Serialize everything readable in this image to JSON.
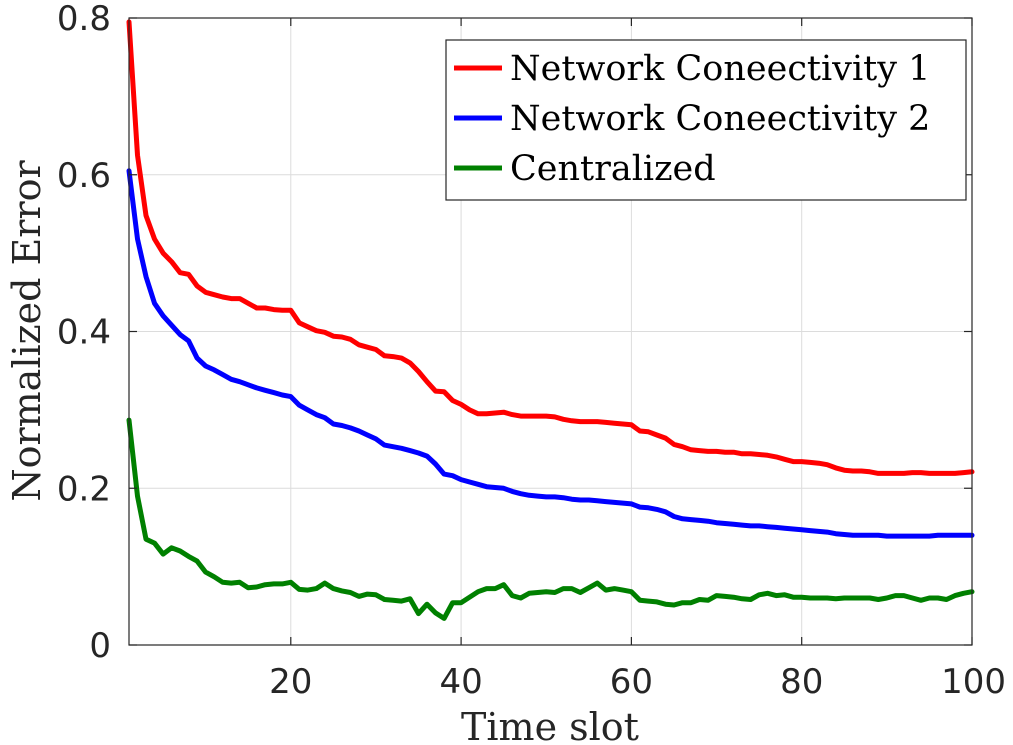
{
  "chart_data": {
    "type": "line",
    "title": "",
    "xlabel": "Time slot",
    "ylabel": "Normalized Error",
    "xlim": [
      1,
      100
    ],
    "ylim": [
      0,
      0.8
    ],
    "xticks": [
      20,
      40,
      60,
      80,
      100
    ],
    "xtick_labels": [
      "20",
      "40",
      "60",
      "80",
      "100"
    ],
    "yticks": [
      0,
      0.2,
      0.4,
      0.6,
      0.8
    ],
    "ytick_labels": [
      "0",
      "0.2",
      "0.4",
      "0.6",
      "0.8"
    ],
    "grid": true,
    "legend_position": "top-right",
    "x": [
      1,
      2,
      3,
      4,
      5,
      6,
      7,
      8,
      9,
      10,
      11,
      12,
      13,
      14,
      15,
      16,
      17,
      18,
      19,
      20,
      21,
      22,
      23,
      24,
      25,
      26,
      27,
      28,
      29,
      30,
      31,
      32,
      33,
      34,
      35,
      36,
      37,
      38,
      39,
      40,
      41,
      42,
      43,
      44,
      45,
      46,
      47,
      48,
      49,
      50,
      51,
      52,
      53,
      54,
      55,
      56,
      57,
      58,
      59,
      60,
      61,
      62,
      63,
      64,
      65,
      66,
      67,
      68,
      69,
      70,
      71,
      72,
      73,
      74,
      75,
      76,
      77,
      78,
      79,
      80,
      81,
      82,
      83,
      84,
      85,
      86,
      87,
      88,
      89,
      90,
      91,
      92,
      93,
      94,
      95,
      96,
      97,
      98,
      99,
      100
    ],
    "series": [
      {
        "name": "Network Coneectivity 1",
        "color": "#ff0000",
        "values": [
          0.795,
          0.625,
          0.548,
          0.518,
          0.5,
          0.489,
          0.475,
          0.473,
          0.458,
          0.45,
          0.447,
          0.444,
          0.442,
          0.442,
          0.436,
          0.43,
          0.43,
          0.428,
          0.427,
          0.427,
          0.411,
          0.406,
          0.401,
          0.399,
          0.394,
          0.393,
          0.39,
          0.383,
          0.38,
          0.377,
          0.369,
          0.368,
          0.366,
          0.36,
          0.349,
          0.336,
          0.324,
          0.323,
          0.312,
          0.307,
          0.3,
          0.295,
          0.295,
          0.296,
          0.297,
          0.294,
          0.292,
          0.292,
          0.292,
          0.292,
          0.291,
          0.288,
          0.286,
          0.285,
          0.285,
          0.285,
          0.284,
          0.283,
          0.282,
          0.281,
          0.273,
          0.272,
          0.268,
          0.264,
          0.256,
          0.253,
          0.249,
          0.248,
          0.247,
          0.247,
          0.246,
          0.246,
          0.244,
          0.244,
          0.243,
          0.242,
          0.24,
          0.237,
          0.234,
          0.234,
          0.233,
          0.232,
          0.23,
          0.226,
          0.223,
          0.222,
          0.222,
          0.221,
          0.219,
          0.219,
          0.219,
          0.219,
          0.22,
          0.22,
          0.219,
          0.219,
          0.219,
          0.219,
          0.22,
          0.221
        ]
      },
      {
        "name": "Network Coneectivity 2",
        "color": "#0000ff",
        "values": [
          0.605,
          0.518,
          0.47,
          0.436,
          0.42,
          0.408,
          0.396,
          0.388,
          0.366,
          0.356,
          0.351,
          0.345,
          0.339,
          0.336,
          0.332,
          0.328,
          0.325,
          0.322,
          0.319,
          0.317,
          0.306,
          0.3,
          0.294,
          0.29,
          0.282,
          0.28,
          0.277,
          0.273,
          0.268,
          0.263,
          0.255,
          0.253,
          0.251,
          0.248,
          0.245,
          0.241,
          0.231,
          0.218,
          0.216,
          0.211,
          0.208,
          0.205,
          0.202,
          0.201,
          0.2,
          0.196,
          0.193,
          0.191,
          0.19,
          0.189,
          0.189,
          0.188,
          0.186,
          0.185,
          0.185,
          0.184,
          0.183,
          0.182,
          0.181,
          0.18,
          0.176,
          0.175,
          0.173,
          0.17,
          0.164,
          0.161,
          0.16,
          0.159,
          0.158,
          0.156,
          0.155,
          0.154,
          0.153,
          0.152,
          0.152,
          0.151,
          0.15,
          0.149,
          0.148,
          0.147,
          0.146,
          0.145,
          0.144,
          0.142,
          0.141,
          0.14,
          0.14,
          0.14,
          0.14,
          0.139,
          0.139,
          0.139,
          0.139,
          0.139,
          0.139,
          0.14,
          0.14,
          0.14,
          0.14,
          0.14
        ]
      },
      {
        "name": "Centralized",
        "color": "#008000",
        "values": [
          0.287,
          0.19,
          0.135,
          0.13,
          0.116,
          0.124,
          0.12,
          0.113,
          0.107,
          0.093,
          0.087,
          0.08,
          0.079,
          0.08,
          0.073,
          0.074,
          0.077,
          0.078,
          0.078,
          0.08,
          0.071,
          0.07,
          0.072,
          0.079,
          0.072,
          0.069,
          0.067,
          0.062,
          0.065,
          0.064,
          0.058,
          0.057,
          0.056,
          0.059,
          0.04,
          0.052,
          0.041,
          0.034,
          0.054,
          0.054,
          0.061,
          0.068,
          0.072,
          0.072,
          0.077,
          0.063,
          0.06,
          0.066,
          0.067,
          0.068,
          0.067,
          0.072,
          0.072,
          0.067,
          0.073,
          0.079,
          0.07,
          0.072,
          0.07,
          0.068,
          0.057,
          0.056,
          0.055,
          0.052,
          0.051,
          0.054,
          0.054,
          0.058,
          0.057,
          0.063,
          0.062,
          0.061,
          0.059,
          0.058,
          0.064,
          0.066,
          0.063,
          0.064,
          0.061,
          0.061,
          0.06,
          0.06,
          0.06,
          0.059,
          0.06,
          0.06,
          0.06,
          0.06,
          0.058,
          0.06,
          0.063,
          0.063,
          0.06,
          0.057,
          0.06,
          0.06,
          0.058,
          0.063,
          0.066,
          0.068
        ]
      }
    ]
  }
}
